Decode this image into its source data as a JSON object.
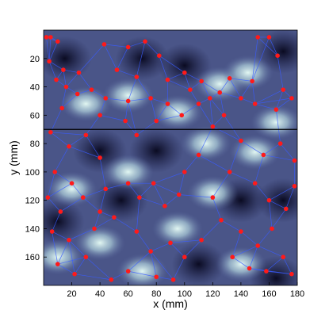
{
  "chart_data": {
    "type": "scatter",
    "title": "",
    "xlabel": "x (mm)",
    "ylabel": "y (mm)",
    "xlim": [
      0,
      180
    ],
    "ylim": [
      0,
      180
    ],
    "y_inverted": true,
    "x_ticks": [
      20,
      40,
      60,
      80,
      100,
      120,
      140,
      160,
      180
    ],
    "x_tick_labels": [
      "20",
      "40",
      "60",
      "80",
      "100",
      "120",
      "140",
      "160",
      "180"
    ],
    "y_ticks": [
      20,
      40,
      60,
      80,
      100,
      120,
      140,
      160
    ],
    "y_tick_labels": [
      "20",
      "40",
      "60",
      "80",
      "100",
      "120",
      "140",
      "160"
    ],
    "grid": false,
    "background": "grayscale intensity heatmap (dark navy to pale cyan)",
    "colors": {
      "point": "#ff1a1a",
      "network_edge": "#3a5cff",
      "reference_line": "#000000",
      "heat_dark": "#0b0b24",
      "heat_mid": "#5a6aa0",
      "heat_light": "#d8f2ee"
    },
    "reference_line": {
      "orientation": "horizontal",
      "y": 70
    },
    "bright_regions": [
      {
        "x": 30,
        "y": 52
      },
      {
        "x": 60,
        "y": 46
      },
      {
        "x": 95,
        "y": 58
      },
      {
        "x": 125,
        "y": 38
      },
      {
        "x": 150,
        "y": 86
      },
      {
        "x": 115,
        "y": 80
      },
      {
        "x": 60,
        "y": 100
      },
      {
        "x": 20,
        "y": 112
      },
      {
        "x": 95,
        "y": 140
      },
      {
        "x": 40,
        "y": 150
      },
      {
        "x": 140,
        "y": 165
      },
      {
        "x": 165,
        "y": 65
      },
      {
        "x": 145,
        "y": 30
      },
      {
        "x": 70,
        "y": 170
      },
      {
        "x": 120,
        "y": 115
      },
      {
        "x": 10,
        "y": 160
      }
    ],
    "dark_regions": [
      {
        "x": 15,
        "y": 20
      },
      {
        "x": 100,
        "y": 25
      },
      {
        "x": 170,
        "y": 15
      },
      {
        "x": 80,
        "y": 85
      },
      {
        "x": 40,
        "y": 85
      },
      {
        "x": 170,
        "y": 120
      },
      {
        "x": 10,
        "y": 135
      },
      {
        "x": 110,
        "y": 165
      },
      {
        "x": 165,
        "y": 175
      },
      {
        "x": 55,
        "y": 120
      },
      {
        "x": 140,
        "y": 120
      },
      {
        "x": 70,
        "y": 20
      }
    ],
    "points": [
      {
        "x": 2,
        "y": 5
      },
      {
        "x": 5,
        "y": 5
      },
      {
        "x": 10,
        "y": 8
      },
      {
        "x": 4,
        "y": 22
      },
      {
        "x": 14,
        "y": 28
      },
      {
        "x": 9,
        "y": 35
      },
      {
        "x": 16,
        "y": 40
      },
      {
        "x": 24,
        "y": 45
      },
      {
        "x": 13,
        "y": 55
      },
      {
        "x": 25,
        "y": 30
      },
      {
        "x": 34,
        "y": 42
      },
      {
        "x": 43,
        "y": 10
      },
      {
        "x": 44,
        "y": 48
      },
      {
        "x": 60,
        "y": 50
      },
      {
        "x": 40,
        "y": 60
      },
      {
        "x": 52,
        "y": 28
      },
      {
        "x": 66,
        "y": 33
      },
      {
        "x": 60,
        "y": 12
      },
      {
        "x": 72,
        "y": 8
      },
      {
        "x": 82,
        "y": 18
      },
      {
        "x": 88,
        "y": 35
      },
      {
        "x": 76,
        "y": 48
      },
      {
        "x": 88,
        "y": 52
      },
      {
        "x": 100,
        "y": 30
      },
      {
        "x": 104,
        "y": 42
      },
      {
        "x": 112,
        "y": 36
      },
      {
        "x": 110,
        "y": 52
      },
      {
        "x": 118,
        "y": 48
      },
      {
        "x": 125,
        "y": 44
      },
      {
        "x": 128,
        "y": 60
      },
      {
        "x": 132,
        "y": 34
      },
      {
        "x": 140,
        "y": 48
      },
      {
        "x": 148,
        "y": 36
      },
      {
        "x": 150,
        "y": 52
      },
      {
        "x": 152,
        "y": 5
      },
      {
        "x": 160,
        "y": 5
      },
      {
        "x": 166,
        "y": 18
      },
      {
        "x": 170,
        "y": 42
      },
      {
        "x": 176,
        "y": 48
      },
      {
        "x": 165,
        "y": 56
      },
      {
        "x": 98,
        "y": 60
      },
      {
        "x": 80,
        "y": 64
      },
      {
        "x": 66,
        "y": 74
      },
      {
        "x": 58,
        "y": 64
      },
      {
        "x": 5,
        "y": 72
      },
      {
        "x": 18,
        "y": 82
      },
      {
        "x": 30,
        "y": 74
      },
      {
        "x": 40,
        "y": 90
      },
      {
        "x": 8,
        "y": 100
      },
      {
        "x": 20,
        "y": 108
      },
      {
        "x": 28,
        "y": 118
      },
      {
        "x": 44,
        "y": 112
      },
      {
        "x": 50,
        "y": 132
      },
      {
        "x": 36,
        "y": 140
      },
      {
        "x": 18,
        "y": 148
      },
      {
        "x": 10,
        "y": 165
      },
      {
        "x": 22,
        "y": 172
      },
      {
        "x": 60,
        "y": 108
      },
      {
        "x": 68,
        "y": 118
      },
      {
        "x": 78,
        "y": 108
      },
      {
        "x": 86,
        "y": 124
      },
      {
        "x": 96,
        "y": 116
      },
      {
        "x": 100,
        "y": 100
      },
      {
        "x": 110,
        "y": 88
      },
      {
        "x": 120,
        "y": 68
      },
      {
        "x": 140,
        "y": 78
      },
      {
        "x": 156,
        "y": 88
      },
      {
        "x": 168,
        "y": 80
      },
      {
        "x": 178,
        "y": 92
      },
      {
        "x": 150,
        "y": 108
      },
      {
        "x": 132,
        "y": 100
      },
      {
        "x": 120,
        "y": 118
      },
      {
        "x": 126,
        "y": 134
      },
      {
        "x": 112,
        "y": 148
      },
      {
        "x": 100,
        "y": 160
      },
      {
        "x": 90,
        "y": 150
      },
      {
        "x": 76,
        "y": 156
      },
      {
        "x": 66,
        "y": 142
      },
      {
        "x": 60,
        "y": 170
      },
      {
        "x": 48,
        "y": 176
      },
      {
        "x": 80,
        "y": 174
      },
      {
        "x": 92,
        "y": 176
      },
      {
        "x": 140,
        "y": 142
      },
      {
        "x": 152,
        "y": 152
      },
      {
        "x": 162,
        "y": 140
      },
      {
        "x": 170,
        "y": 160
      },
      {
        "x": 176,
        "y": 172
      },
      {
        "x": 158,
        "y": 170
      },
      {
        "x": 146,
        "y": 168
      },
      {
        "x": 134,
        "y": 160
      },
      {
        "x": 172,
        "y": 126
      },
      {
        "x": 178,
        "y": 110
      },
      {
        "x": 160,
        "y": 120
      },
      {
        "x": 30,
        "y": 160
      },
      {
        "x": 40,
        "y": 128
      },
      {
        "x": 3,
        "y": 118
      },
      {
        "x": 12,
        "y": 128
      },
      {
        "x": 6,
        "y": 142
      }
    ]
  }
}
